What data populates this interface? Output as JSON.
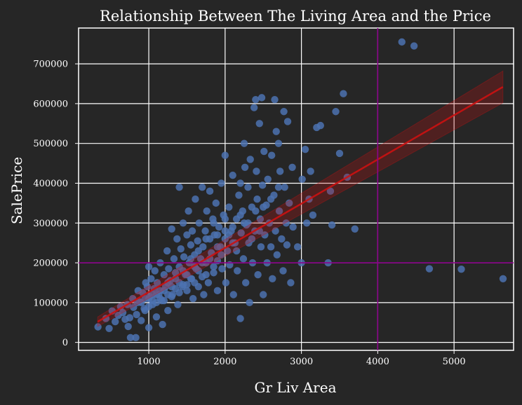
{
  "chart_data": {
    "type": "scatter",
    "title": "Relationship Between The Living Area and the Price",
    "xlabel": "Gr Liv Area",
    "ylabel": "SalePrice",
    "xlim": [
      80,
      5780
    ],
    "ylim": [
      -20000,
      790000
    ],
    "x_ticks": [
      1000,
      2000,
      3000,
      4000,
      5000
    ],
    "y_ticks": [
      0,
      100000,
      200000,
      300000,
      400000,
      500000,
      600000,
      700000
    ],
    "grid": true,
    "regression": {
      "x_start": 330,
      "x_end": 5640,
      "y_start": 52000,
      "y_end": 642000,
      "ci_start": 12000,
      "ci_end": 40000
    },
    "reference_lines": {
      "vertical_x": 4000,
      "horizontal_y": 200000
    },
    "colors": {
      "background": "#262626",
      "points": "#4c72b0",
      "regression": "#cc1111",
      "reference": "#8b008b",
      "grid": "#ffffff"
    },
    "points": [
      [
        334,
        39000
      ],
      [
        438,
        60000
      ],
      [
        480,
        35000
      ],
      [
        520,
        79000
      ],
      [
        560,
        52000
      ],
      [
        600,
        68000
      ],
      [
        630,
        90000
      ],
      [
        660,
        75000
      ],
      [
        690,
        58000
      ],
      [
        720,
        95000
      ],
      [
        730,
        40000
      ],
      [
        750,
        62000
      ],
      [
        760,
        12000
      ],
      [
        790,
        110000
      ],
      [
        800,
        88000
      ],
      [
        830,
        12000
      ],
      [
        840,
        70000
      ],
      [
        860,
        130000
      ],
      [
        880,
        102000
      ],
      [
        900,
        55000
      ],
      [
        920,
        125000
      ],
      [
        940,
        85000
      ],
      [
        960,
        150000
      ],
      [
        980,
        140000
      ],
      [
        1000,
        190000
      ],
      [
        1000,
        37000
      ],
      [
        1010,
        115000
      ],
      [
        1030,
        160000
      ],
      [
        1050,
        95000
      ],
      [
        1070,
        135000
      ],
      [
        1080,
        180000
      ],
      [
        1100,
        64000
      ],
      [
        1110,
        150000
      ],
      [
        1130,
        120000
      ],
      [
        1150,
        200000
      ],
      [
        1170,
        105000
      ],
      [
        1180,
        45000
      ],
      [
        1200,
        170000
      ],
      [
        1220,
        140000
      ],
      [
        1240,
        230000
      ],
      [
        1250,
        80000
      ],
      [
        1260,
        185000
      ],
      [
        1280,
        155000
      ],
      [
        1300,
        285000
      ],
      [
        1310,
        120000
      ],
      [
        1330,
        210000
      ],
      [
        1350,
        175000
      ],
      [
        1370,
        260000
      ],
      [
        1380,
        95000
      ],
      [
        1400,
        190000
      ],
      [
        1400,
        390000
      ],
      [
        1420,
        235000
      ],
      [
        1440,
        140000
      ],
      [
        1450,
        300000
      ],
      [
        1460,
        215000
      ],
      [
        1480,
        170000
      ],
      [
        1500,
        270000
      ],
      [
        1500,
        130000
      ],
      [
        1520,
        330000
      ],
      [
        1530,
        200000
      ],
      [
        1550,
        245000
      ],
      [
        1560,
        160000
      ],
      [
        1570,
        280000
      ],
      [
        1580,
        110000
      ],
      [
        1600,
        220000
      ],
      [
        1610,
        360000
      ],
      [
        1620,
        185000
      ],
      [
        1640,
        255000
      ],
      [
        1650,
        140000
      ],
      [
        1660,
        300000
      ],
      [
        1680,
        210000
      ],
      [
        1700,
        390000
      ],
      [
        1700,
        165000
      ],
      [
        1710,
        240000
      ],
      [
        1720,
        120000
      ],
      [
        1740,
        280000
      ],
      [
        1750,
        200000
      ],
      [
        1760,
        330000
      ],
      [
        1780,
        150000
      ],
      [
        1800,
        260000
      ],
      [
        1800,
        380000
      ],
      [
        1820,
        225000
      ],
      [
        1840,
        310000
      ],
      [
        1850,
        175000
      ],
      [
        1860,
        270000
      ],
      [
        1880,
        350000
      ],
      [
        1900,
        205000
      ],
      [
        1900,
        130000
      ],
      [
        1920,
        290000
      ],
      [
        1940,
        240000
      ],
      [
        1950,
        400000
      ],
      [
        1960,
        185000
      ],
      [
        1980,
        320000
      ],
      [
        2000,
        260000
      ],
      [
        2000,
        470000
      ],
      [
        2010,
        150000
      ],
      [
        2030,
        230000
      ],
      [
        2050,
        340000
      ],
      [
        2060,
        195000
      ],
      [
        2080,
        280000
      ],
      [
        2100,
        420000
      ],
      [
        2110,
        120000
      ],
      [
        2130,
        250000
      ],
      [
        2150,
        310000
      ],
      [
        2160,
        180000
      ],
      [
        2180,
        370000
      ],
      [
        2200,
        60000
      ],
      [
        2210,
        275000
      ],
      [
        2230,
        330000
      ],
      [
        2240,
        210000
      ],
      [
        2250,
        500000
      ],
      [
        2260,
        440000
      ],
      [
        2270,
        150000
      ],
      [
        2280,
        295000
      ],
      [
        2300,
        390000
      ],
      [
        2310,
        250000
      ],
      [
        2320,
        100000
      ],
      [
        2330,
        460000
      ],
      [
        2350,
        340000
      ],
      [
        2360,
        200000
      ],
      [
        2380,
        590000
      ],
      [
        2390,
        280000
      ],
      [
        2400,
        610000
      ],
      [
        2410,
        430000
      ],
      [
        2420,
        360000
      ],
      [
        2430,
        170000
      ],
      [
        2450,
        550000
      ],
      [
        2460,
        310000
      ],
      [
        2470,
        240000
      ],
      [
        2480,
        615000
      ],
      [
        2490,
        395000
      ],
      [
        2500,
        120000
      ],
      [
        2510,
        480000
      ],
      [
        2520,
        270000
      ],
      [
        2540,
        345000
      ],
      [
        2550,
        200000
      ],
      [
        2560,
        410000
      ],
      [
        2580,
        300000
      ],
      [
        2600,
        240000
      ],
      [
        2610,
        470000
      ],
      [
        2620,
        160000
      ],
      [
        2640,
        370000
      ],
      [
        2650,
        610000
      ],
      [
        2660,
        280000
      ],
      [
        2670,
        530000
      ],
      [
        2680,
        220000
      ],
      [
        2700,
        500000
      ],
      [
        2710,
        330000
      ],
      [
        2720,
        430000
      ],
      [
        2740,
        260000
      ],
      [
        2760,
        180000
      ],
      [
        2770,
        580000
      ],
      [
        2780,
        390000
      ],
      [
        2800,
        300000
      ],
      [
        2810,
        245000
      ],
      [
        2820,
        555000
      ],
      [
        2840,
        350000
      ],
      [
        2860,
        150000
      ],
      [
        2880,
        440000
      ],
      [
        2890,
        290000
      ],
      [
        2950,
        240000
      ],
      [
        3000,
        200000
      ],
      [
        3010,
        410000
      ],
      [
        3050,
        485000
      ],
      [
        3070,
        300000
      ],
      [
        3100,
        360000
      ],
      [
        3120,
        430000
      ],
      [
        3150,
        320000
      ],
      [
        3200,
        540000
      ],
      [
        3250,
        545000
      ],
      [
        3350,
        200000
      ],
      [
        3380,
        380000
      ],
      [
        3400,
        295000
      ],
      [
        3450,
        580000
      ],
      [
        3500,
        475000
      ],
      [
        3550,
        625000
      ],
      [
        3600,
        415000
      ],
      [
        3700,
        285000
      ],
      [
        4316,
        755000
      ],
      [
        4476,
        745000
      ],
      [
        4676,
        185000
      ],
      [
        5095,
        184000
      ],
      [
        5642,
        160000
      ],
      [
        2200,
        400000
      ],
      [
        2150,
        230000
      ],
      [
        1850,
        300000
      ],
      [
        1750,
        260000
      ],
      [
        1650,
        230000
      ],
      [
        1550,
        210000
      ],
      [
        1450,
        180000
      ],
      [
        1350,
        160000
      ],
      [
        1250,
        150000
      ],
      [
        1150,
        130000
      ],
      [
        1050,
        120000
      ],
      [
        950,
        110000
      ],
      [
        850,
        100000
      ],
      [
        1900,
        240000
      ],
      [
        2050,
        270000
      ],
      [
        2250,
        300000
      ],
      [
        2350,
        260000
      ],
      [
        2450,
        280000
      ],
      [
        1700,
        200000
      ],
      [
        1600,
        190000
      ],
      [
        1500,
        170000
      ],
      [
        1400,
        150000
      ],
      [
        1300,
        140000
      ],
      [
        1200,
        130000
      ],
      [
        1100,
        120000
      ],
      [
        1000,
        110000
      ],
      [
        900,
        100000
      ],
      [
        1950,
        220000
      ],
      [
        2100,
        250000
      ],
      [
        1800,
        210000
      ],
      [
        1650,
        180000
      ],
      [
        1550,
        160000
      ],
      [
        1450,
        145000
      ],
      [
        1350,
        135000
      ],
      [
        1250,
        120000
      ],
      [
        1150,
        110000
      ],
      [
        1050,
        105000
      ],
      [
        2000,
        280000
      ],
      [
        2200,
        320000
      ],
      [
        2300,
        300000
      ],
      [
        2400,
        330000
      ],
      [
        2500,
        340000
      ],
      [
        2600,
        360000
      ],
      [
        2700,
        390000
      ],
      [
        1850,
        190000
      ],
      [
        1750,
        170000
      ],
      [
        1600,
        150000
      ],
      [
        1500,
        145000
      ],
      [
        1400,
        125000
      ],
      [
        1300,
        115000
      ],
      [
        1200,
        105000
      ],
      [
        1100,
        100000
      ],
      [
        1000,
        90000
      ],
      [
        950,
        80000
      ],
      [
        1900,
        270000
      ],
      [
        2000,
        310000
      ],
      [
        2100,
        290000
      ]
    ]
  }
}
